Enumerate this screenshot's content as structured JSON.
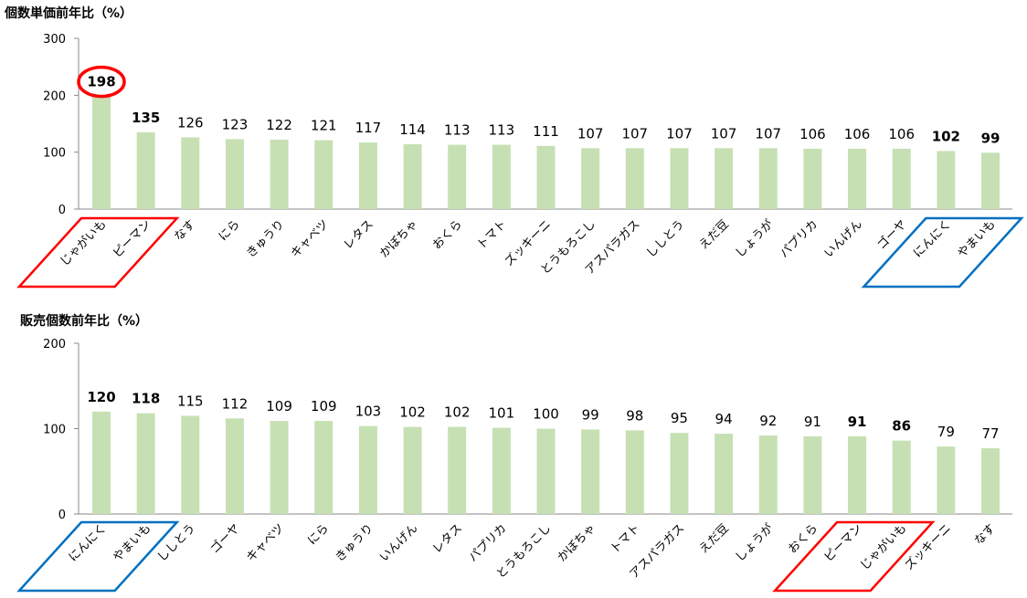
{
  "colors": {
    "bar": "#c6e0b4",
    "axis": "#888888",
    "highlight_red": "#ff0000",
    "highlight_blue": "#0070c0"
  },
  "chart_data": [
    {
      "type": "bar",
      "title": "個数単価前年比（%）",
      "ylim": [
        0,
        300
      ],
      "yticks": [
        "0",
        "100",
        "200",
        "300"
      ],
      "grid": false,
      "categories": [
        "じゃがいも",
        "ピーマン",
        "なす",
        "にら",
        "きゅうり",
        "キャベツ",
        "レタス",
        "かぼちゃ",
        "おくら",
        "トマト",
        "ズッキーニ",
        "とうもろこし",
        "アスパラガス",
        "ししとう",
        "えだ豆",
        "しょうが",
        "パプリカ",
        "いんげん",
        "ゴーヤ",
        "にんにく",
        "やまいも"
      ],
      "values": [
        198,
        135,
        126,
        123,
        122,
        121,
        117,
        114,
        113,
        113,
        111,
        107,
        107,
        107,
        107,
        107,
        106,
        106,
        106,
        102,
        99
      ],
      "bold_values": [
        0,
        1,
        19,
        20
      ],
      "circled_value": 0,
      "highlight_groups": [
        {
          "color": "red",
          "indices": [
            0,
            1
          ]
        },
        {
          "color": "blue",
          "indices": [
            19,
            20
          ]
        }
      ]
    },
    {
      "type": "bar",
      "title": "販売個数前年比（%）",
      "ylim": [
        0,
        200
      ],
      "yticks": [
        "0",
        "100",
        "200"
      ],
      "grid": false,
      "categories": [
        "にんにく",
        "やまいも",
        "ししとう",
        "ゴーヤ",
        "キャベツ",
        "にら",
        "きゅうり",
        "いんげん",
        "レタス",
        "パプリカ",
        "とうもろこし",
        "かぼちゃ",
        "トマト",
        "アスパラガス",
        "えだ豆",
        "しょうが",
        "おくら",
        "ピーマン",
        "じゃがいも",
        "ズッキーニ",
        "なす"
      ],
      "values": [
        120,
        118,
        115,
        112,
        109,
        109,
        103,
        102,
        102,
        101,
        100,
        99,
        98,
        95,
        94,
        92,
        91,
        91,
        86,
        79,
        77
      ],
      "bold_values": [
        0,
        1,
        17,
        18
      ],
      "circled_value": null,
      "highlight_groups": [
        {
          "color": "blue",
          "indices": [
            0,
            1
          ]
        },
        {
          "color": "red",
          "indices": [
            17,
            18
          ]
        }
      ]
    }
  ]
}
